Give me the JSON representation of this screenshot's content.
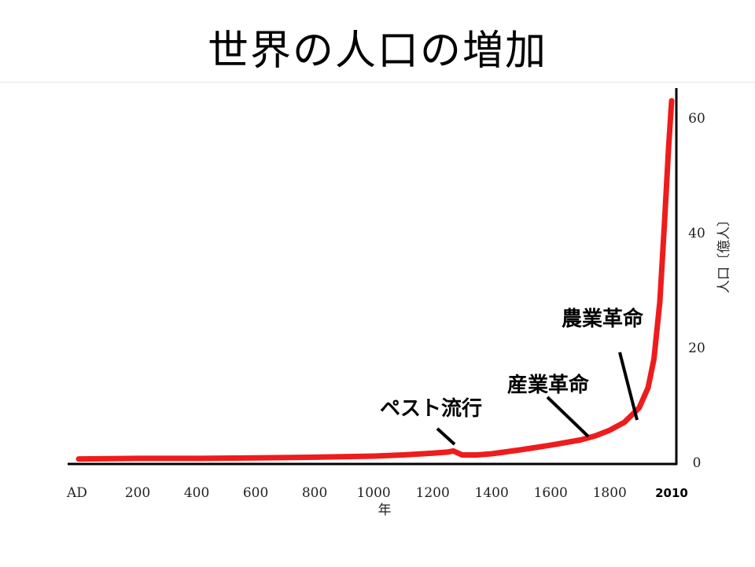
{
  "slide": {
    "title": "世界の人口の増加"
  },
  "chart_data": {
    "type": "line",
    "xlabel": "年",
    "ylabel": "人口〔億人〕",
    "xlim": [
      0,
      2010
    ],
    "ylim": [
      0,
      64
    ],
    "x_ticks": [
      {
        "value": 0,
        "label": "AD"
      },
      {
        "value": 200,
        "label": "200"
      },
      {
        "value": 400,
        "label": "400"
      },
      {
        "value": 600,
        "label": "600"
      },
      {
        "value": 800,
        "label": "800"
      },
      {
        "value": 1000,
        "label": "1000"
      },
      {
        "value": 1200,
        "label": "1200"
      },
      {
        "value": 1400,
        "label": "1400"
      },
      {
        "value": 1600,
        "label": "1600"
      },
      {
        "value": 1800,
        "label": "1800"
      },
      {
        "value": 2010,
        "label": "2010",
        "emphasis": true
      }
    ],
    "y_ticks": [
      0,
      20,
      40,
      60
    ],
    "grid": false,
    "series": [
      {
        "color": "#ee1c1c",
        "x": [
          0,
          200,
          400,
          600,
          800,
          1000,
          1100,
          1200,
          1250,
          1270,
          1300,
          1350,
          1400,
          1500,
          1600,
          1700,
          1750,
          1800,
          1850,
          1900,
          1930,
          1950,
          1970,
          1985,
          2000,
          2010
        ],
        "y": [
          0.6,
          0.7,
          0.7,
          0.8,
          0.9,
          1.1,
          1.3,
          1.6,
          1.8,
          2.0,
          1.3,
          1.3,
          1.5,
          2.2,
          3.0,
          3.9,
          4.6,
          5.6,
          7.0,
          9.5,
          13,
          18,
          28,
          41,
          55,
          63
        ]
      }
    ],
    "annotations": [
      {
        "text": "ペスト流行",
        "x": 1270,
        "y": 2.0
      },
      {
        "text": "産業革命",
        "x": 1730,
        "y": 4.4
      },
      {
        "text": "農業革命",
        "x": 1890,
        "y": 8.0
      }
    ]
  }
}
